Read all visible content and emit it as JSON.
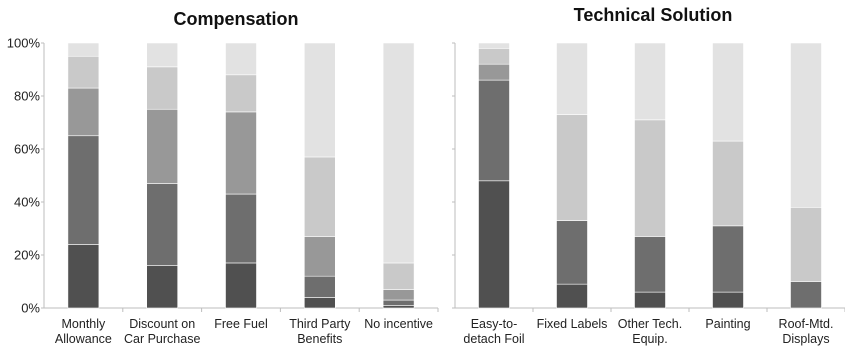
{
  "colors": {
    "segments": [
      "#505050",
      "#6e6e6e",
      "#989898",
      "#c9c9c9",
      "#e2e2e2"
    ],
    "axis": "#bdbdbd",
    "gridline": "#ffffff"
  },
  "chart_data": [
    {
      "type": "bar",
      "stacked": true,
      "title": "Compensation",
      "y_ticks": [
        "0%",
        "20%",
        "40%",
        "60%",
        "80%",
        "100%"
      ],
      "ylim": [
        0,
        100
      ],
      "unit": "%",
      "grid": false,
      "categories": [
        [
          "Monthly",
          "Allowance"
        ],
        [
          "Discount on",
          "Car Purchase"
        ],
        [
          "Free Fuel"
        ],
        [
          "Third Party",
          "Benefits"
        ],
        [
          "No incentive"
        ]
      ],
      "series": [
        {
          "values": [
            24,
            16,
            17,
            4,
            1
          ]
        },
        {
          "values": [
            41,
            31,
            26,
            8,
            2
          ]
        },
        {
          "values": [
            18,
            28,
            31,
            15,
            4
          ]
        },
        {
          "values": [
            12,
            16,
            14,
            30,
            10
          ]
        },
        {
          "values": [
            5,
            9,
            12,
            43,
            83
          ]
        }
      ]
    },
    {
      "type": "bar",
      "stacked": true,
      "title": "Technical Solution",
      "ylim": [
        0,
        100
      ],
      "unit": "%",
      "grid": false,
      "categories": [
        [
          "Easy-to-",
          "detach Foil"
        ],
        [
          "Fixed Labels"
        ],
        [
          "Other Tech.",
          "Equip."
        ],
        [
          "Painting"
        ],
        [
          "Roof-Mtd.",
          "Displays"
        ]
      ],
      "series": [
        {
          "values": [
            48,
            9,
            6,
            6,
            0
          ]
        },
        {
          "values": [
            38,
            24,
            21,
            25,
            10
          ]
        },
        {
          "values": [
            6,
            0,
            0,
            0,
            0
          ]
        },
        {
          "values": [
            6,
            40,
            44,
            32,
            28
          ]
        },
        {
          "values": [
            2,
            27,
            29,
            37,
            62
          ]
        }
      ]
    }
  ]
}
